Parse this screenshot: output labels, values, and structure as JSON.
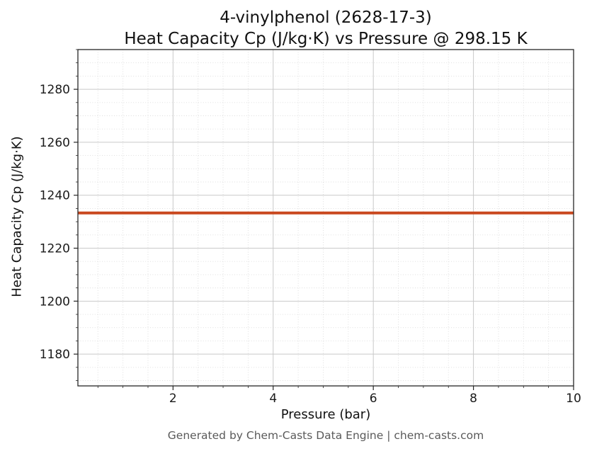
{
  "figure": {
    "title_line1": "4-vinylphenol (2628-17-3)",
    "title_line2": "Heat Capacity Cp (J/kg·K) vs Pressure @ 298.15 K",
    "xlabel": "Pressure (bar)",
    "ylabel": "Heat Capacity Cp (J/kg·K)",
    "footer": "Generated by Chem-Casts Data Engine | chem-casts.com"
  },
  "chart_data": {
    "type": "line",
    "title": "4-vinylphenol (2628-17-3) — Heat Capacity Cp (J/kg·K) vs Pressure @ 298.15 K",
    "xlabel": "Pressure (bar)",
    "ylabel": "Heat Capacity Cp (J/kg·K)",
    "xlim": [
      0.1,
      10
    ],
    "ylim": [
      1168,
      1295
    ],
    "x_ticks": [
      2,
      4,
      6,
      8,
      10
    ],
    "y_ticks": [
      1180,
      1200,
      1220,
      1240,
      1260,
      1280
    ],
    "x_minor_step": 0.5,
    "y_minor_step": 5,
    "grid": true,
    "legend_position": "none",
    "series": [
      {
        "name": "Heat Capacity Cp",
        "color": "#c9481f",
        "line_width": 4,
        "x": [
          0.1,
          10
        ],
        "y": [
          1233.3,
          1233.3
        ]
      }
    ]
  },
  "colors": {
    "line": "#c9481f",
    "grid_major": "#c9c9c9",
    "grid_minor": "#dcdcdc",
    "spine": "#262626",
    "text": "#1a1a1a",
    "footer_text": "#5a5a5a",
    "background": "#ffffff"
  }
}
